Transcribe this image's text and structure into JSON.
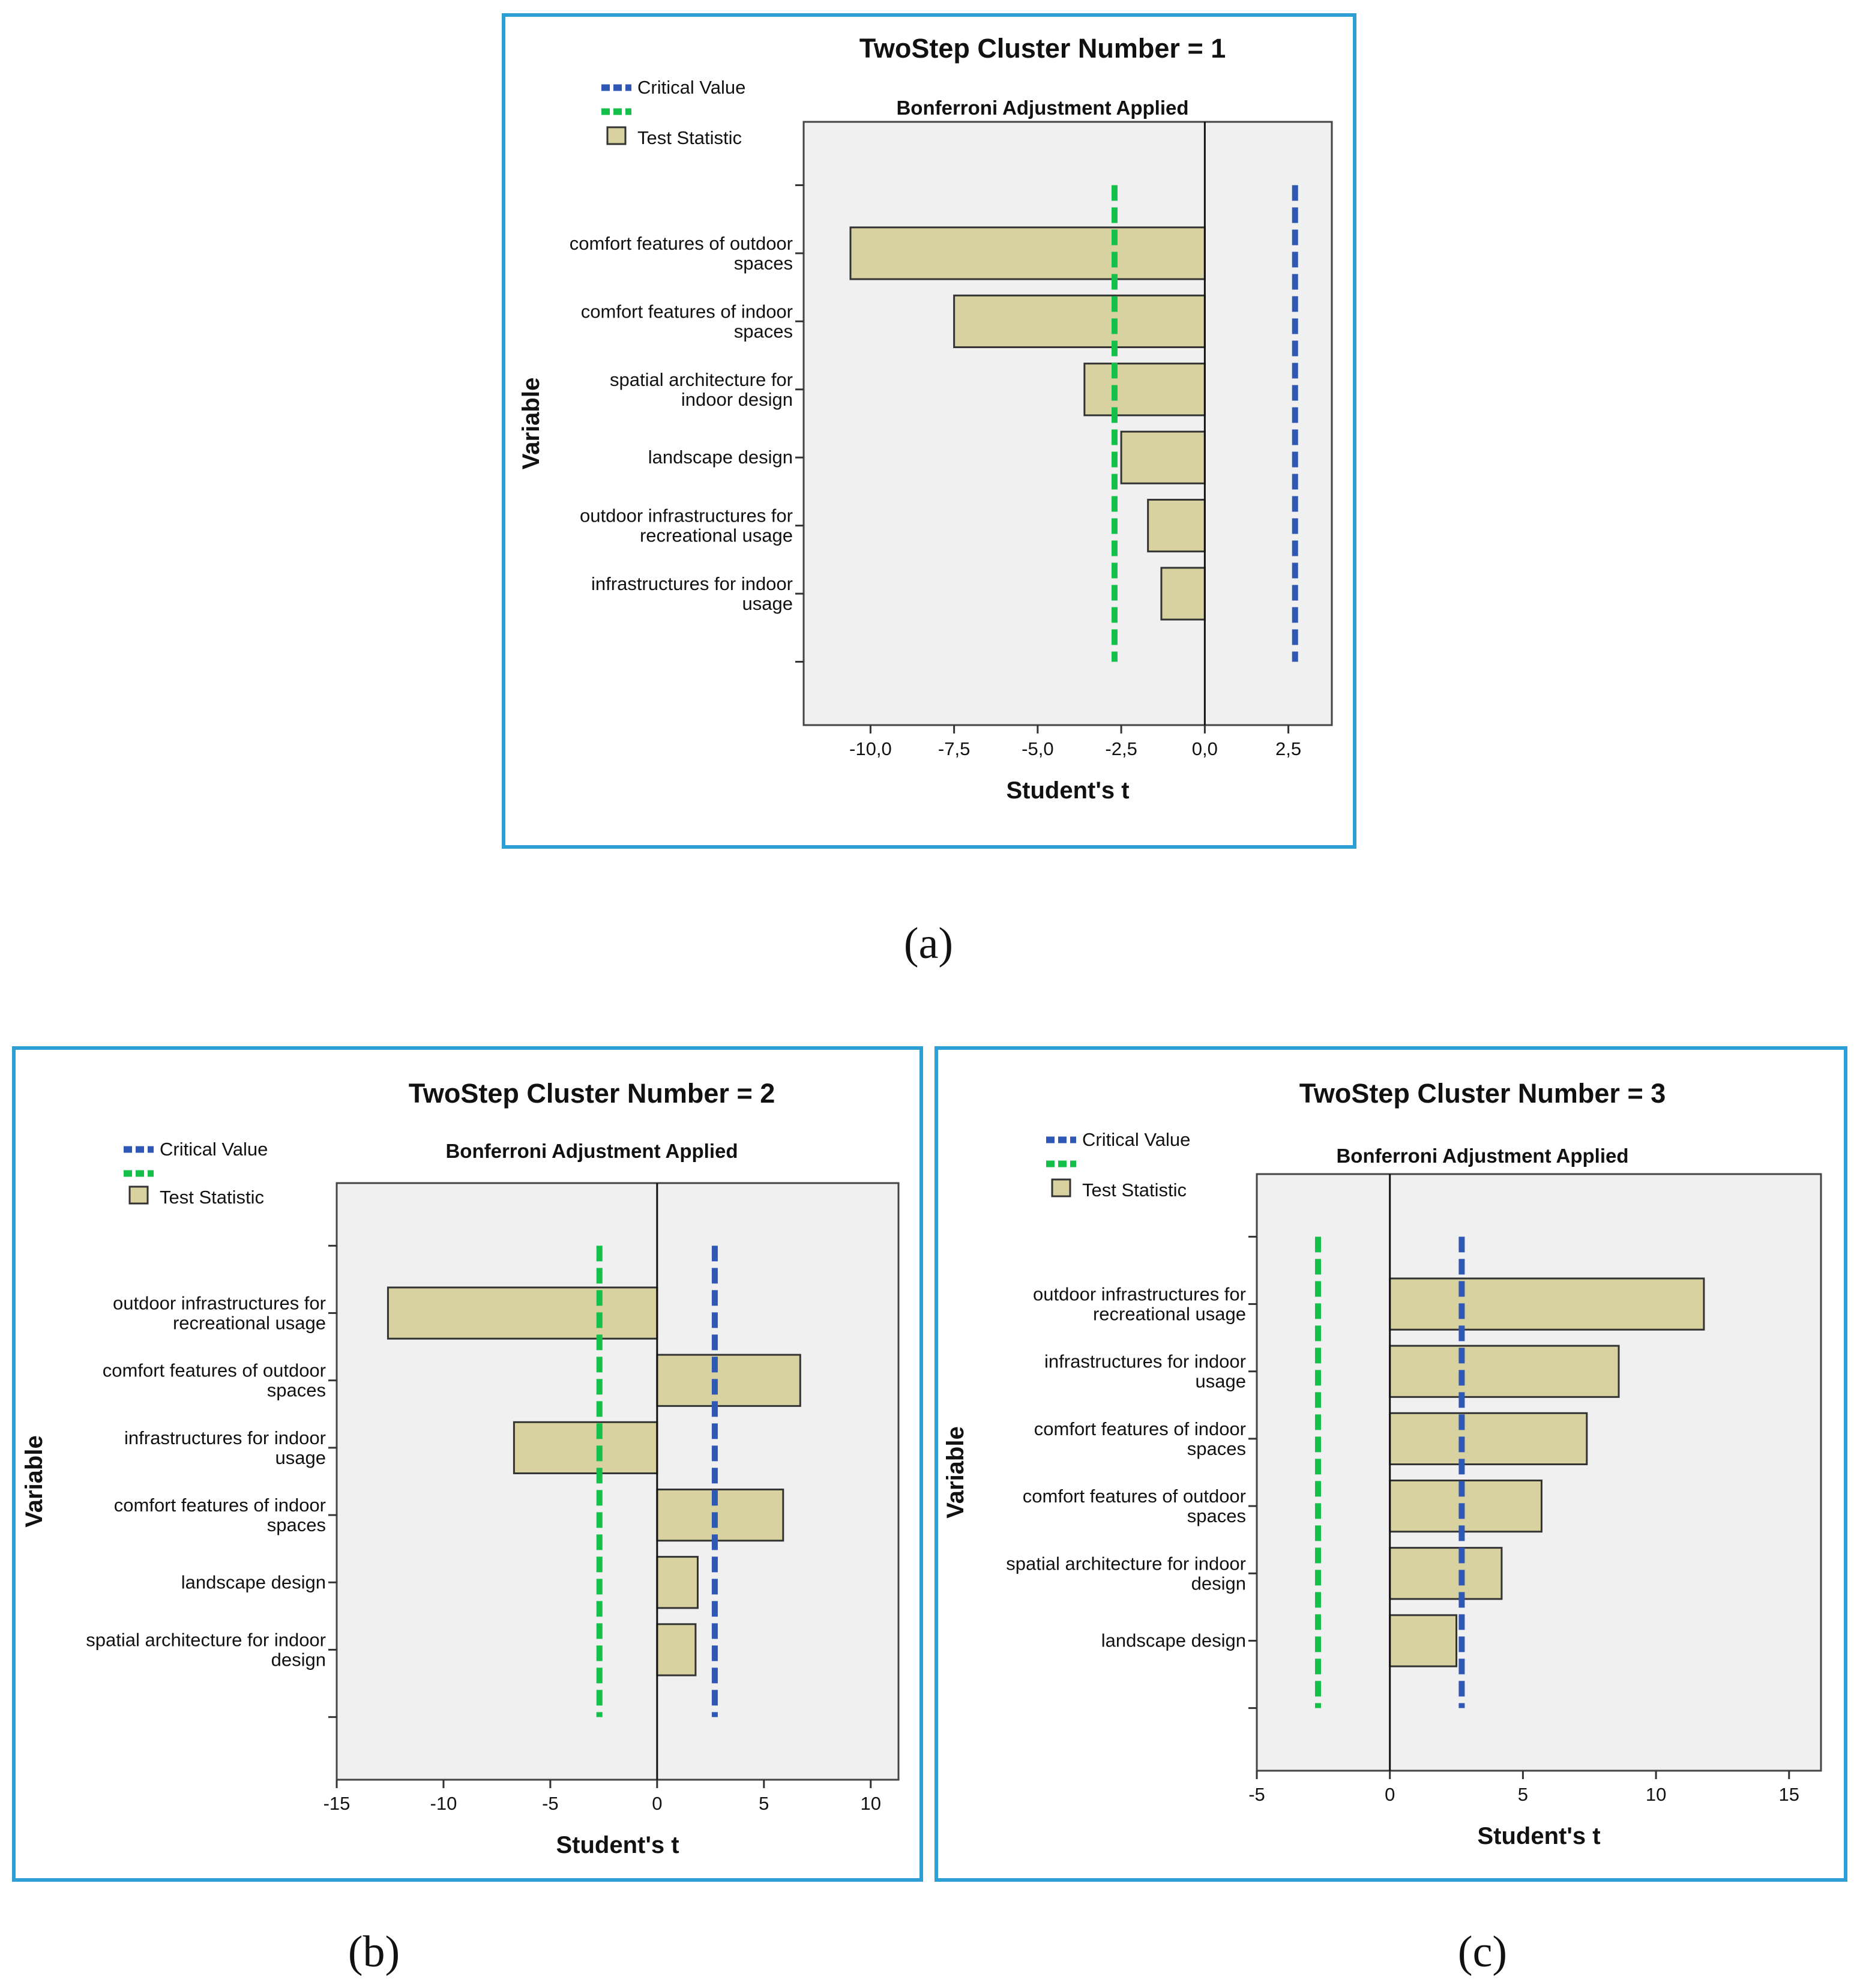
{
  "colors": {
    "frame": "#2e9fd6",
    "plot_bg": "#f0f0f0",
    "bar_fill": "#d8d2a0",
    "bar_stroke": "#333333",
    "critical_value": "#2f58b5",
    "test_statistic_line": "#14c04a"
  },
  "legend": {
    "critical_label": "Critical Value",
    "statistic_label": "Test Statistic"
  },
  "captions": {
    "a": "(a)",
    "b": "(b)",
    "c": "(c)"
  },
  "chart_data": [
    {
      "type": "bar",
      "orientation": "horizontal",
      "title": "TwoStep Cluster Number = 1",
      "subtitle": "Bonferroni Adjustment Applied",
      "xlabel": "Student's t",
      "ylabel": "Variable",
      "xlim": [
        -12,
        3.8
      ],
      "ticks": [
        -10,
        -7.5,
        -5,
        -2.5,
        0,
        2.5
      ],
      "tick_labels": [
        "-10,0",
        "-7,5",
        "-5,0",
        "-2,5",
        "0,0",
        "2,5"
      ],
      "critical_value": 2.7,
      "categories": [
        [
          "comfort features of outdoor",
          "spaces"
        ],
        [
          "comfort features of indoor",
          "spaces"
        ],
        [
          "spatial architecture for",
          "indoor design"
        ],
        [
          "landscape design"
        ],
        [
          "outdoor infrastructures for",
          "recreational usage"
        ],
        [
          "infrastructures for indoor",
          "usage"
        ]
      ],
      "values": [
        -10.6,
        -7.5,
        -3.6,
        -2.5,
        -1.7,
        -1.3
      ]
    },
    {
      "type": "bar",
      "orientation": "horizontal",
      "title": "TwoStep Cluster Number = 2",
      "subtitle": "Bonferroni Adjustment Applied",
      "xlabel": "Student's t",
      "ylabel": "Variable",
      "xlim": [
        -15,
        11.3
      ],
      "ticks": [
        -15,
        -10,
        -5,
        0,
        5,
        10
      ],
      "tick_labels": [
        "-15",
        "-10",
        "-5",
        "0",
        "5",
        "10"
      ],
      "critical_value": 2.7,
      "categories": [
        [
          "outdoor infrastructures for",
          "recreational usage"
        ],
        [
          "comfort features of outdoor",
          "spaces"
        ],
        [
          "infrastructures for indoor",
          "usage"
        ],
        [
          "comfort features of indoor",
          "spaces"
        ],
        [
          "landscape design"
        ],
        [
          "spatial architecture for indoor",
          "design"
        ]
      ],
      "values": [
        -12.6,
        6.7,
        -6.7,
        5.9,
        1.9,
        1.8
      ]
    },
    {
      "type": "bar",
      "orientation": "horizontal",
      "title": "TwoStep Cluster Number = 3",
      "subtitle": "Bonferroni Adjustment Applied",
      "xlabel": "Student's t",
      "ylabel": "Variable",
      "xlim": [
        -5,
        16.2
      ],
      "ticks": [
        -5,
        0,
        5,
        10,
        15
      ],
      "tick_labels": [
        "-5",
        "0",
        "5",
        "10",
        "15"
      ],
      "critical_value": 2.7,
      "categories": [
        [
          "outdoor infrastructures for",
          "recreational usage"
        ],
        [
          "infrastructures for indoor",
          "usage"
        ],
        [
          "comfort features of indoor",
          "spaces"
        ],
        [
          "comfort features of outdoor",
          "spaces"
        ],
        [
          "spatial architecture for indoor",
          "design"
        ],
        [
          "landscape design"
        ]
      ],
      "values": [
        11.8,
        8.6,
        7.4,
        5.7,
        4.2,
        2.5
      ]
    }
  ]
}
